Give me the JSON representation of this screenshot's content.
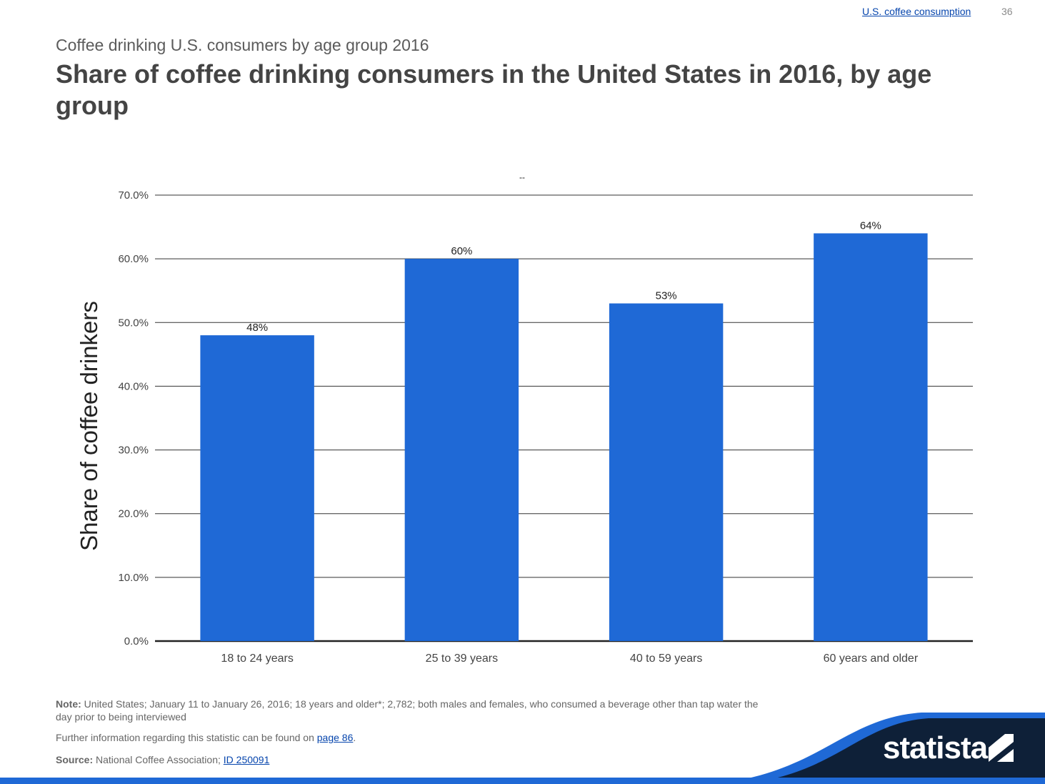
{
  "header": {
    "topic_link": "U.S. coffee consumption",
    "page_number": "36"
  },
  "subtitle": "Coffee drinking U.S. consumers by age group 2016",
  "title": "Share of coffee drinking consumers in the United States in 2016, by age group",
  "chart_marker": "--",
  "chart_data": {
    "type": "bar",
    "categories": [
      "18 to 24 years",
      "25 to 39 years",
      "40 to 59 years",
      "60 years and older"
    ],
    "values": [
      48,
      60,
      53,
      64
    ],
    "value_labels": [
      "48%",
      "60%",
      "53%",
      "64%"
    ],
    "ylabel": "Share of coffee drinkers",
    "ylim": [
      0,
      70
    ],
    "yticks": [
      "0.0%",
      "10.0%",
      "20.0%",
      "30.0%",
      "40.0%",
      "50.0%",
      "60.0%",
      "70.0%"
    ],
    "grid": true,
    "bar_color": "#1f69d6"
  },
  "footnotes": {
    "note_label": "Note:",
    "note_text": " United States; January 11 to January 26, 2016; 18 years and older*; 2,782; both males and females, who consumed a beverage other than tap water the day prior to being interviewed",
    "info_text": "Further information regarding this statistic can be found on ",
    "info_link": "page 86",
    "info_end": ".",
    "source_label": "Source:",
    "source_text": " National Coffee Association; ",
    "source_link": "ID 250091"
  },
  "logo": {
    "text": "statista",
    "colors": {
      "dark": "#0e2038",
      "accent": "#1f69d6"
    }
  }
}
